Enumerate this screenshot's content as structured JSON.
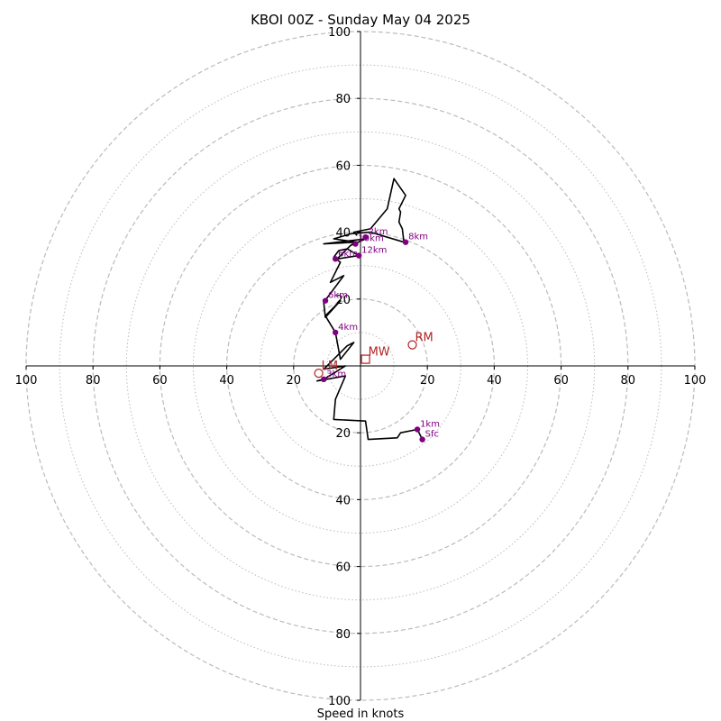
{
  "chart_data": {
    "type": "line",
    "title": "KBOI 00Z - Sunday May 04 2025",
    "xlabel": "Speed in knots",
    "axis_range": [
      -100,
      100
    ],
    "ring_major": [
      20,
      40,
      60,
      80,
      100
    ],
    "ring_minor": [
      10,
      30,
      50,
      70,
      90
    ],
    "x_ticks": [
      {
        "value": -100,
        "label": "100"
      },
      {
        "value": -80,
        "label": "80"
      },
      {
        "value": -60,
        "label": "60"
      },
      {
        "value": -40,
        "label": "40"
      },
      {
        "value": -20,
        "label": "20"
      },
      {
        "value": 20,
        "label": "20"
      },
      {
        "value": 40,
        "label": "40"
      },
      {
        "value": 60,
        "label": "60"
      },
      {
        "value": 80,
        "label": "80"
      },
      {
        "value": 100,
        "label": "100"
      }
    ],
    "y_ticks": [
      {
        "value": 100,
        "label": "100"
      },
      {
        "value": 80,
        "label": "80"
      },
      {
        "value": 60,
        "label": "60"
      },
      {
        "value": 40,
        "label": "40"
      },
      {
        "value": 20,
        "label": "20"
      },
      {
        "value": -20,
        "label": "20"
      },
      {
        "value": -40,
        "label": "40"
      },
      {
        "value": -60,
        "label": "60"
      },
      {
        "value": -80,
        "label": "80"
      },
      {
        "value": -100,
        "label": "100"
      }
    ],
    "hodograph": [
      [
        18.5,
        -22
      ],
      [
        17,
        -19
      ],
      [
        12,
        -20
      ],
      [
        11,
        -21.5
      ],
      [
        2.3,
        -22
      ],
      [
        1.5,
        -16.5
      ],
      [
        -8,
        -16
      ],
      [
        -7.5,
        -10
      ],
      [
        -4.5,
        -3
      ],
      [
        -13,
        -4.5
      ],
      [
        -11,
        -4
      ],
      [
        -4.5,
        0
      ],
      [
        -11,
        -1
      ],
      [
        -4,
        6
      ],
      [
        -2,
        7
      ],
      [
        -6,
        2
      ],
      [
        -7.5,
        10
      ],
      [
        -10.5,
        15
      ],
      [
        -6,
        19.5
      ],
      [
        -10.5,
        14.5
      ],
      [
        -11,
        19
      ],
      [
        -5,
        27
      ],
      [
        -9,
        25
      ],
      [
        -6,
        31
      ],
      [
        -8,
        32.5
      ],
      [
        -6.5,
        34.5
      ],
      [
        -4,
        35
      ],
      [
        -7,
        32
      ],
      [
        -0.5,
        33
      ],
      [
        -4,
        35
      ],
      [
        -3,
        36
      ],
      [
        -1.5,
        37
      ],
      [
        -3,
        36
      ],
      [
        1.5,
        38
      ],
      [
        -11,
        36.5
      ],
      [
        -1,
        37
      ],
      [
        -8,
        38
      ],
      [
        -3,
        39.5
      ],
      [
        3,
        40
      ],
      [
        13,
        37
      ],
      [
        12.5,
        41
      ],
      [
        11.5,
        43
      ],
      [
        12,
        46
      ],
      [
        11.5,
        47
      ],
      [
        13.5,
        51
      ],
      [
        10,
        56
      ],
      [
        8,
        47
      ],
      [
        3,
        41
      ],
      [
        -2,
        40
      ],
      [
        -1,
        39
      ]
    ],
    "height_points": [
      {
        "label": "Sfc",
        "x": 18.5,
        "y": -22
      },
      {
        "label": "1km",
        "x": 17,
        "y": -19
      },
      {
        "label": "3km",
        "x": -11,
        "y": -4
      },
      {
        "label": "4km",
        "x": -7.5,
        "y": 10
      },
      {
        "label": "6km",
        "x": -10.5,
        "y": 19.5
      },
      {
        "label": "6km",
        "x": -7.5,
        "y": 32
      },
      {
        "label": "10km",
        "x": -1.5,
        "y": 36.5
      },
      {
        "label": "12km",
        "x": -0.5,
        "y": 33
      },
      {
        "label": "8km",
        "x": 13.5,
        "y": 37
      },
      {
        "label": "2km",
        "x": 1.5,
        "y": 38.5
      }
    ],
    "motion_markers": [
      {
        "label": "RM",
        "shape": "circle",
        "x": 15.5,
        "y": 6.3
      },
      {
        "label": "LM",
        "shape": "circle",
        "x": -12.5,
        "y": -2.2
      },
      {
        "label": "MW",
        "shape": "square",
        "x": 1.5,
        "y": 2
      }
    ],
    "colors": {
      "line": "#000000",
      "points": "#800080",
      "markers": "#b22222",
      "grid": "#bbbbbb"
    }
  }
}
